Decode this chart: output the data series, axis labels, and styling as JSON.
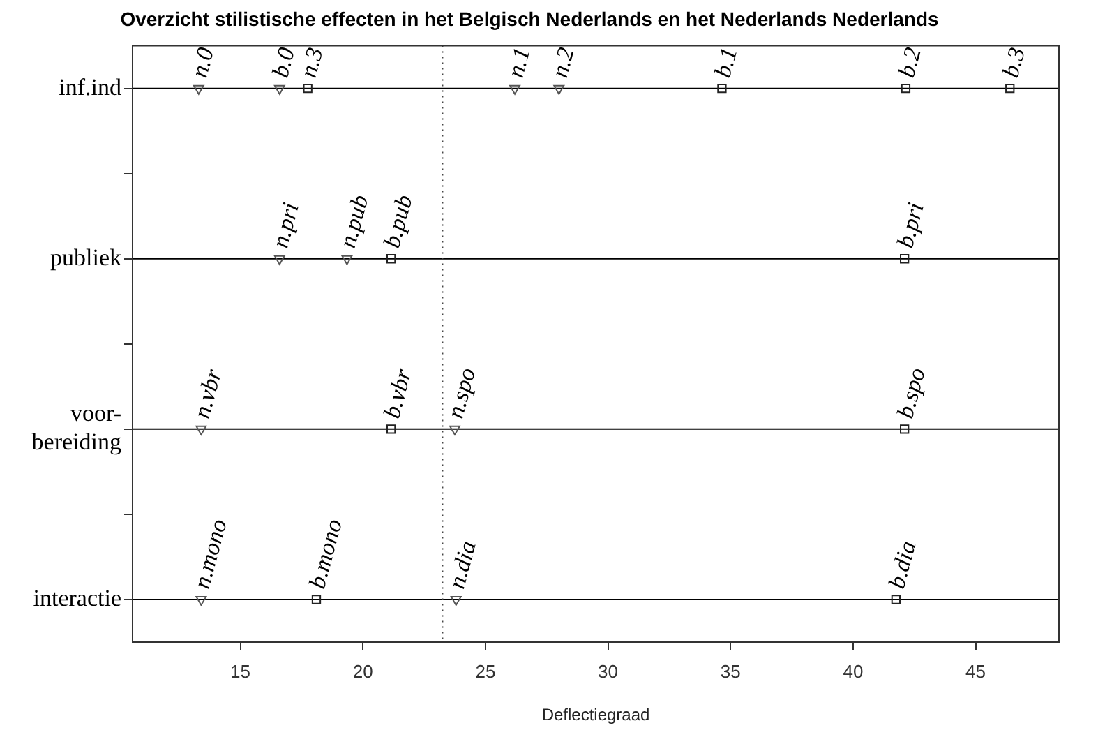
{
  "chart_data": {
    "type": "scatter",
    "orientation": "horizontal",
    "title": "Overzicht stilistische effecten in het Belgisch Nederlands en het Nederlands Nederlands",
    "xlabel": "Deflectiegraad",
    "xlim": [
      10.6,
      48.4
    ],
    "xticks": [
      15,
      20,
      25,
      30,
      35,
      40,
      45
    ],
    "categories": [
      "inf.ind",
      null,
      "publiek",
      null,
      "voor-\nbereiding",
      null,
      "interactie"
    ],
    "grid": false,
    "legend": false,
    "series": [
      {
        "color": "#555555",
        "marker": "triangle",
        "values": [
          13.3,
          null,
          16.6,
          null,
          13.4,
          null,
          13.4
        ],
        "value_labels": [
          "n.0",
          null,
          "n.pri",
          null,
          "n.vbr",
          null,
          "n.mono"
        ]
      },
      {
        "color": "#555555",
        "marker": "triangle",
        "values": [
          16.6,
          null,
          19.35,
          null,
          23.75,
          null,
          23.8
        ],
        "value_labels": [
          "b.0",
          null,
          "n.pub",
          null,
          "n.spo",
          null,
          "n.dia"
        ]
      },
      {
        "color": "#555555",
        "marker": "triangle",
        "values": [
          26.2,
          null,
          null,
          null,
          null,
          null,
          null
        ],
        "value_labels": [
          "n.1",
          null,
          null,
          null,
          null,
          null,
          null
        ]
      },
      {
        "color": "#555555",
        "marker": "triangle",
        "values": [
          28.0,
          null,
          null,
          null,
          null,
          null,
          null
        ],
        "value_labels": [
          "n.2",
          null,
          null,
          null,
          null,
          null,
          null
        ]
      },
      {
        "color": "#222222",
        "marker": "square",
        "values": [
          17.75,
          null,
          21.15,
          null,
          21.15,
          null,
          18.1
        ],
        "value_labels": [
          "n.3",
          null,
          "b.pub",
          null,
          "b.vbr",
          null,
          "b.mono"
        ]
      },
      {
        "color": "#222222",
        "marker": "square",
        "values": [
          34.65,
          null,
          42.1,
          null,
          42.1,
          null,
          41.75
        ],
        "value_labels": [
          "b.1",
          null,
          "b.pri",
          null,
          "b.spo",
          null,
          "b.dia"
        ]
      },
      {
        "color": "#222222",
        "marker": "square",
        "values": [
          42.15,
          null,
          null,
          null,
          null,
          null,
          null
        ],
        "value_labels": [
          "b.2",
          null,
          null,
          null,
          null,
          null,
          null
        ]
      },
      {
        "color": "#222222",
        "marker": "square",
        "values": [
          46.4,
          null,
          null,
          null,
          null,
          null,
          null
        ],
        "value_labels": [
          "b.3",
          null,
          null,
          null,
          null,
          null,
          null
        ]
      }
    ],
    "ref_lines": [
      {
        "axis": "y",
        "value": "inf.ind",
        "color": "#000000",
        "line_style": "solid"
      },
      {
        "axis": "y",
        "value": "publiek",
        "color": "#000000",
        "line_style": "solid"
      },
      {
        "axis": "y",
        "value": "voor-\nbereiding",
        "color": "#000000",
        "line_style": "solid"
      },
      {
        "axis": "y",
        "value": "interactie",
        "color": "#000000",
        "line_style": "solid"
      },
      {
        "axis": "x",
        "value": 23.25,
        "color": "#444444",
        "line_style": "dotted"
      }
    ]
  }
}
